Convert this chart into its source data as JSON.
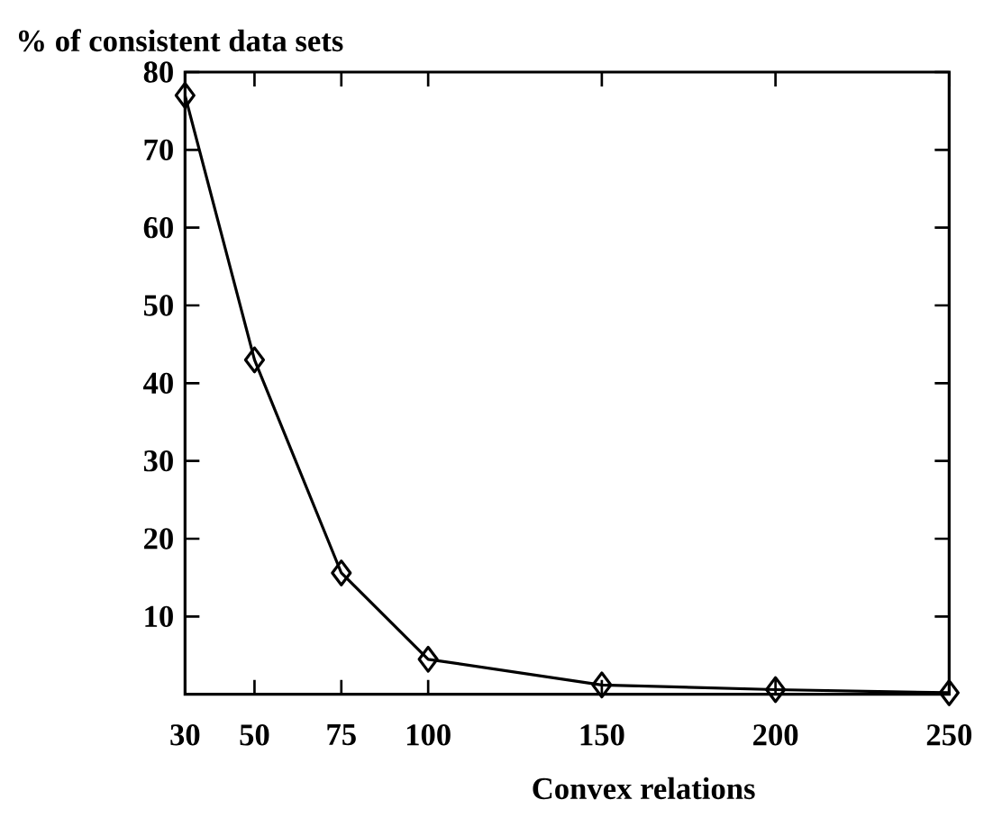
{
  "chart_data": {
    "type": "line",
    "xlabel": "Convex relations",
    "ylabel": "% of consistent data sets",
    "x": [
      30,
      50,
      75,
      100,
      150,
      200,
      250
    ],
    "values": [
      77,
      43,
      15.6,
      4.5,
      1.2,
      0.6,
      0.2
    ],
    "color": "#000000",
    "marker": "diamond",
    "line_style": "solid",
    "grid": false,
    "xlim": [
      30,
      250
    ],
    "xticks": [
      30,
      50,
      75,
      100,
      150,
      200,
      250
    ],
    "ylim": [
      0,
      80
    ],
    "yticks": [
      10,
      20,
      30,
      40,
      50,
      60,
      70,
      80
    ]
  }
}
